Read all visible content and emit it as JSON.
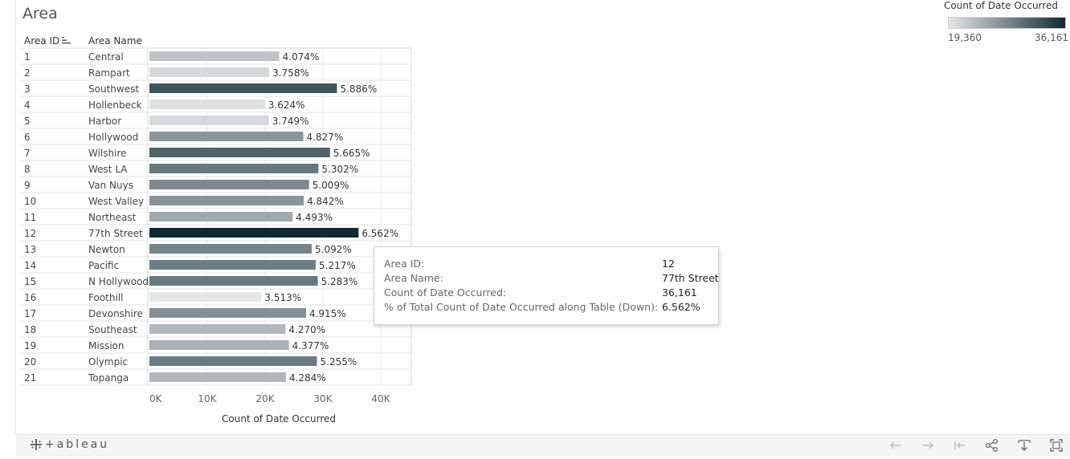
{
  "title": "Area",
  "columns": {
    "area_id": "Area ID",
    "area_name": "Area Name"
  },
  "legend": {
    "title": "Count of Date Occurred",
    "min_label": "19,360",
    "max_label": "36,161",
    "min_color": "#e4e7e8",
    "max_color": "#0f2a33"
  },
  "chart_data": {
    "type": "bar",
    "orientation": "horizontal",
    "xlabel": "Count of Date Occurred",
    "xlim": [
      0,
      45000
    ],
    "xticks": [
      "0K",
      "10K",
      "20K",
      "30K",
      "40K"
    ],
    "xtick_values": [
      0,
      10000,
      20000,
      30000,
      40000
    ],
    "grid": true,
    "color_scale_range": [
      19360,
      36161
    ],
    "rows": [
      {
        "id": "1",
        "name": "Central",
        "value": 22450,
        "pct": "4.074%"
      },
      {
        "id": "2",
        "name": "Rampart",
        "value": 20710,
        "pct": "3.758%"
      },
      {
        "id": "3",
        "name": "Southwest",
        "value": 32430,
        "pct": "5.886%"
      },
      {
        "id": "4",
        "name": "Hollenbeck",
        "value": 19970,
        "pct": "3.624%"
      },
      {
        "id": "5",
        "name": "Harbor",
        "value": 20660,
        "pct": "3.749%"
      },
      {
        "id": "6",
        "name": "Hollywood",
        "value": 26600,
        "pct": "4.827%"
      },
      {
        "id": "7",
        "name": "Wilshire",
        "value": 31220,
        "pct": "5.665%"
      },
      {
        "id": "8",
        "name": "West LA",
        "value": 29220,
        "pct": "5.302%"
      },
      {
        "id": "9",
        "name": "Van Nuys",
        "value": 27600,
        "pct": "5.009%"
      },
      {
        "id": "10",
        "name": "West Valley",
        "value": 26680,
        "pct": "4.842%"
      },
      {
        "id": "11",
        "name": "Northeast",
        "value": 24760,
        "pct": "4.493%"
      },
      {
        "id": "12",
        "name": "77th Street",
        "value": 36161,
        "pct": "6.562%"
      },
      {
        "id": "13",
        "name": "Newton",
        "value": 28060,
        "pct": "5.092%"
      },
      {
        "id": "14",
        "name": "Pacific",
        "value": 28750,
        "pct": "5.217%"
      },
      {
        "id": "15",
        "name": "N Hollywood",
        "value": 29110,
        "pct": "5.283%"
      },
      {
        "id": "16",
        "name": "Foothill",
        "value": 19360,
        "pct": "3.513%"
      },
      {
        "id": "17",
        "name": "Devonshire",
        "value": 27080,
        "pct": "4.915%"
      },
      {
        "id": "18",
        "name": "Southeast",
        "value": 23530,
        "pct": "4.270%"
      },
      {
        "id": "19",
        "name": "Mission",
        "value": 24120,
        "pct": "4.377%"
      },
      {
        "id": "20",
        "name": "Olympic",
        "value": 28960,
        "pct": "5.255%"
      },
      {
        "id": "21",
        "name": "Topanga",
        "value": 23610,
        "pct": "4.284%"
      }
    ]
  },
  "tooltip": {
    "rows": [
      {
        "label": "Area ID:",
        "value": "12"
      },
      {
        "label": "Area Name:",
        "value": "77th Street"
      },
      {
        "label": "Count of Date Occurred:",
        "value": "36,161"
      },
      {
        "label": "% of Total Count of Date Occurred along Table (Down):",
        "value": "6.562%"
      }
    ]
  },
  "footer": {
    "logo_text": "+ableau",
    "icons": [
      "undo-icon",
      "redo-icon",
      "revert-icon",
      "share-icon",
      "download-icon",
      "fullscreen-icon"
    ]
  }
}
